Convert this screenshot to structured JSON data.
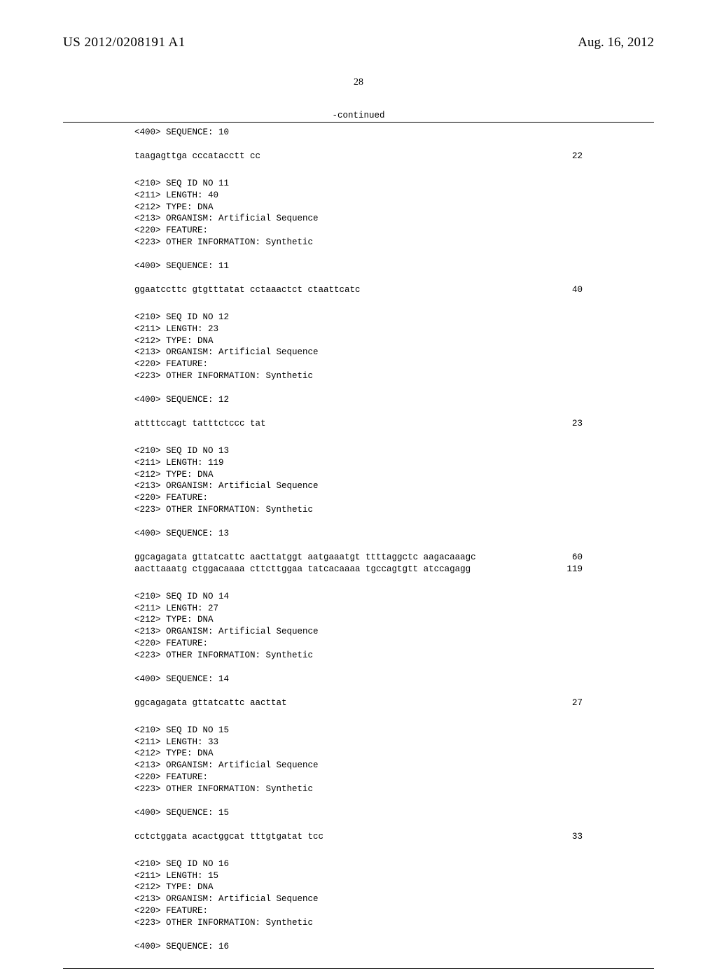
{
  "header": {
    "pub_number": "US 2012/0208191 A1",
    "pub_date": "Aug. 16, 2012",
    "page_number": "28",
    "continued_label": "-continued"
  },
  "seq_intro": {
    "label": "<400> SEQUENCE: 10",
    "seq": "taagagttga cccatacctt cc",
    "count": "22"
  },
  "sequences": [
    {
      "meta": [
        "<210> SEQ ID NO 11",
        "<211> LENGTH: 40",
        "<212> TYPE: DNA",
        "<213> ORGANISM: Artificial Sequence",
        "<220> FEATURE:",
        "<223> OTHER INFORMATION: Synthetic"
      ],
      "seq_label": "<400> SEQUENCE: 11",
      "lines": [
        {
          "seq": "ggaatccttc gtgtttatat cctaaactct ctaattcatc",
          "count": "40"
        }
      ]
    },
    {
      "meta": [
        "<210> SEQ ID NO 12",
        "<211> LENGTH: 23",
        "<212> TYPE: DNA",
        "<213> ORGANISM: Artificial Sequence",
        "<220> FEATURE:",
        "<223> OTHER INFORMATION: Synthetic"
      ],
      "seq_label": "<400> SEQUENCE: 12",
      "lines": [
        {
          "seq": "attttccagt tatttctccc tat",
          "count": "23"
        }
      ]
    },
    {
      "meta": [
        "<210> SEQ ID NO 13",
        "<211> LENGTH: 119",
        "<212> TYPE: DNA",
        "<213> ORGANISM: Artificial Sequence",
        "<220> FEATURE:",
        "<223> OTHER INFORMATION: Synthetic"
      ],
      "seq_label": "<400> SEQUENCE: 13",
      "lines": [
        {
          "seq": "ggcagagata gttatcattc aacttatggt aatgaaatgt ttttaggctc aagacaaagc",
          "count": "60"
        },
        {
          "seq": "aacttaaatg ctggacaaaa cttcttggaa tatcacaaaa tgccagtgtt atccagagg",
          "count": "119"
        }
      ]
    },
    {
      "meta": [
        "<210> SEQ ID NO 14",
        "<211> LENGTH: 27",
        "<212> TYPE: DNA",
        "<213> ORGANISM: Artificial Sequence",
        "<220> FEATURE:",
        "<223> OTHER INFORMATION: Synthetic"
      ],
      "seq_label": "<400> SEQUENCE: 14",
      "lines": [
        {
          "seq": "ggcagagata gttatcattc aacttat",
          "count": "27"
        }
      ]
    },
    {
      "meta": [
        "<210> SEQ ID NO 15",
        "<211> LENGTH: 33",
        "<212> TYPE: DNA",
        "<213> ORGANISM: Artificial Sequence",
        "<220> FEATURE:",
        "<223> OTHER INFORMATION: Synthetic"
      ],
      "seq_label": "<400> SEQUENCE: 15",
      "lines": [
        {
          "seq": "cctctggata acactggcat tttgtgatat tcc",
          "count": "33"
        }
      ]
    },
    {
      "meta": [
        "<210> SEQ ID NO 16",
        "<211> LENGTH: 15",
        "<212> TYPE: DNA",
        "<213> ORGANISM: Artificial Sequence",
        "<220> FEATURE:",
        "<223> OTHER INFORMATION: Synthetic"
      ],
      "seq_label": "<400> SEQUENCE: 16",
      "lines": []
    }
  ],
  "style": {
    "font_mono": "Courier New",
    "font_serif": "Times New Roman",
    "text_color": "#000000",
    "bg_color": "#ffffff",
    "hr_color": "#000000",
    "mono_fontsize": 12.5,
    "header_fontsize": 19,
    "pagenum_fontsize": 14
  }
}
